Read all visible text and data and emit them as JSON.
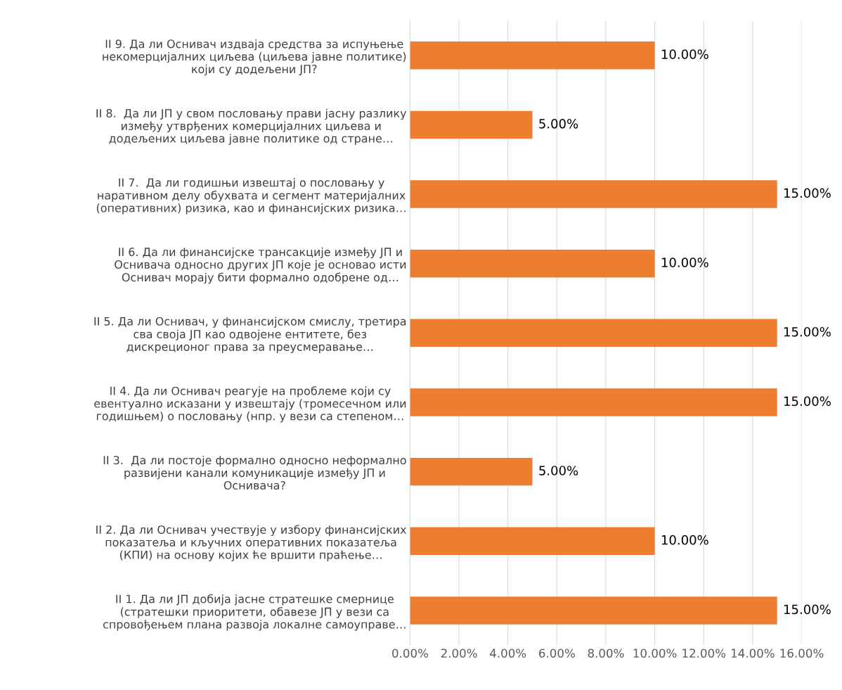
{
  "chart_data": {
    "type": "bar",
    "orientation": "horizontal",
    "categories": [
      "II 9. Да ли Оснивач издваја средства за испуњење\nнекомерцијалних циљева (циљева јавне политике)\nкоји су додељени ЈП?",
      "II 8.  Да ли ЈП у свом пословању прави јасну разлику\nизмеђу утврђених комерцијалних циљева и\nдодељених циљева јавне политике од стране…",
      "II 7.  Да ли годишњи извештај о пословању у\nнаративном делу обухвата и сегмент материјалних\n(оперативних) ризика, као и финансијских ризика…",
      "II 6. Да ли финансијске трансакције између ЈП и\nОснивача односно других ЈП које је основао исти\nОснивач морају бити формално одобрене од…",
      "II 5. Да ли Оснивач, у финансијском смислу, третира\nсва своја ЈП као одвојене ентитете, без\nдискреционог права за преусмеравање…",
      "II 4. Да ли Оснивач реагује на проблеме који су\nевентуално исказани у извештају (тромесечном или\nгодишњем) о пословању (нпр. у вези са степеном…",
      "II 3.  Да ли постоје формално односно неформално\nразвијени канали комуникације између ЈП и\nОснивача?",
      "II 2. Да ли Оснивач учествује у избору финансијских\nпоказатеља и кључних оперативних показатеља\n(КПИ) на основу којих ће вршити праћење…",
      "II 1. Да ли ЈП добија јасне стратешке смернице\n(стратешки приоритети, обавезе ЈП у вези са\nспровођењем плана развоја локалне самоуправе…"
    ],
    "values": [
      10,
      5,
      15,
      10,
      15,
      15,
      5,
      10,
      15
    ],
    "value_labels": [
      "10.00%",
      "5.00%",
      "15.00%",
      "10.00%",
      "15.00%",
      "15.00%",
      "5.00%",
      "10.00%",
      "15.00%"
    ],
    "color": "#ed7d31",
    "xlim": [
      0,
      16
    ],
    "xticks": [
      {
        "value": 0,
        "label": "0.00%"
      },
      {
        "value": 2,
        "label": "2.00%"
      },
      {
        "value": 4,
        "label": "4.00%"
      },
      {
        "value": 6,
        "label": "6.00%"
      },
      {
        "value": 8,
        "label": "8.00%"
      },
      {
        "value": 10,
        "label": "10.00%"
      },
      {
        "value": 12,
        "label": "12.00%"
      },
      {
        "value": 14,
        "label": "14.00%"
      },
      {
        "value": 16,
        "label": "16.00%"
      }
    ],
    "grid": "x"
  }
}
